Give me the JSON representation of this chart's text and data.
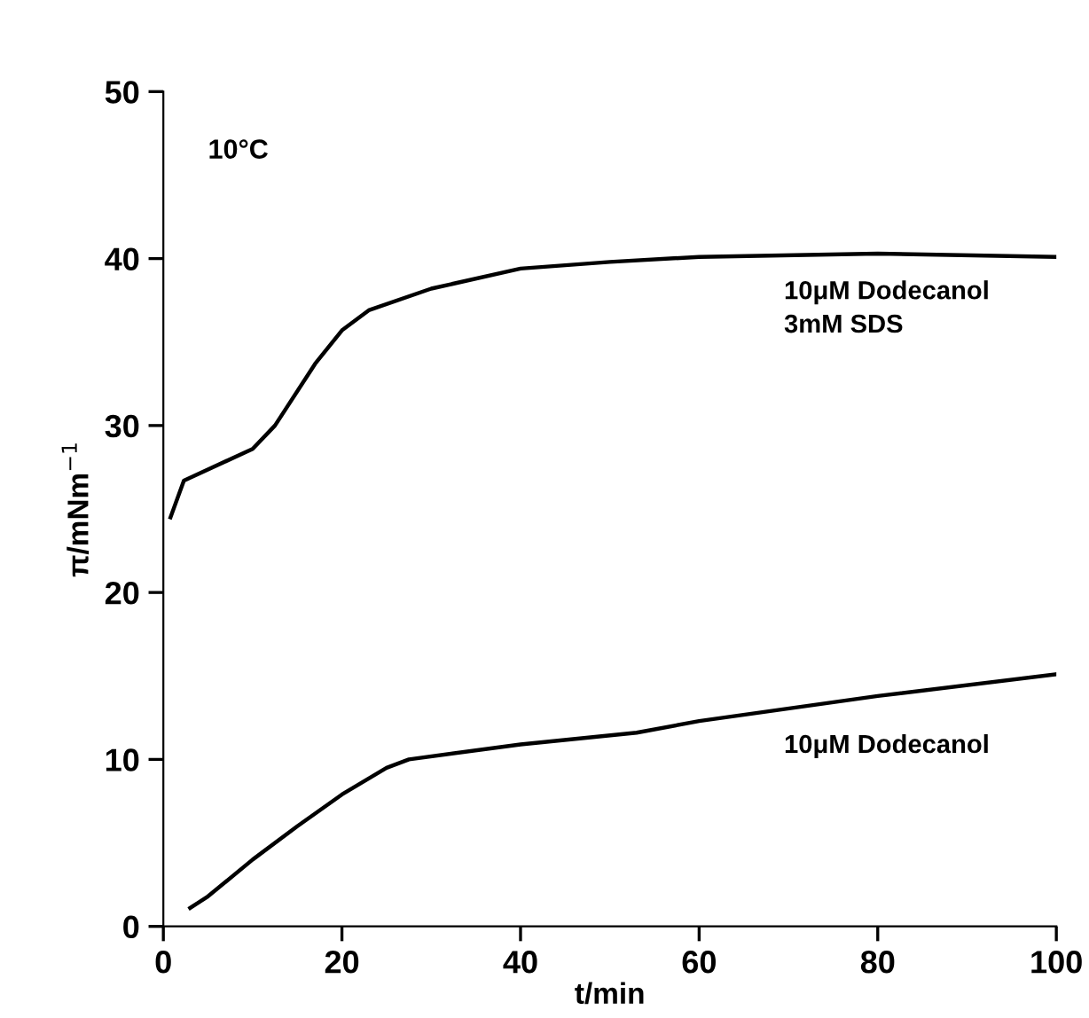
{
  "chart_data": {
    "type": "line",
    "xlabel": "t/min",
    "ylabel": "π/mNm$^{−1}$",
    "annotations": [
      "10°C"
    ],
    "xlim": [
      0,
      100
    ],
    "ylim": [
      0,
      50
    ],
    "xticks": [
      0,
      20,
      40,
      60,
      80,
      100
    ],
    "yticks": [
      0,
      10,
      20,
      30,
      40,
      50
    ],
    "grid": false,
    "legend": false,
    "marker": "none",
    "line_style": "solid",
    "series": [
      {
        "name": "10μM Dodecanol\n3mM SDS",
        "color": "#000000",
        "x": [
          0.8,
          2.3,
          10,
          12.5,
          17,
          20,
          23,
          30,
          40,
          50,
          60,
          80,
          100
        ],
        "values": [
          24.5,
          26.7,
          28.6,
          30,
          33.7,
          35.7,
          36.9,
          38.2,
          39.4,
          39.8,
          40.1,
          40.3,
          40.1
        ]
      },
      {
        "name": "10μM Dodecanol",
        "color": "#000000",
        "x": [
          3,
          5,
          10,
          15,
          20,
          25,
          27.5,
          40,
          53,
          60,
          80,
          100
        ],
        "values": [
          1.1,
          1.8,
          4,
          6,
          7.9,
          9.5,
          10,
          10.9,
          11.6,
          12.3,
          13.8,
          15.1
        ]
      }
    ]
  }
}
